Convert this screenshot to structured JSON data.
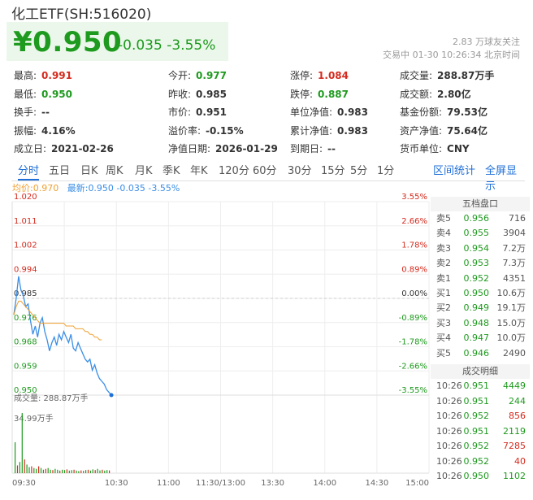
{
  "header": {
    "title": "化工ETF(SH:516020)",
    "price": "¥0.950",
    "change": "-0.035",
    "change_pct": "-3.55%",
    "follow": "2.83 万球友关注",
    "trade_status": "交易中 01-30 10:26:34 北京时间"
  },
  "info": {
    "rows": [
      [
        {
          "k": "最高:",
          "v": "0.991",
          "c": "red"
        },
        {
          "k": "今开:",
          "v": "0.977",
          "c": "green"
        },
        {
          "k": "涨停:",
          "v": "1.084",
          "c": "red"
        },
        {
          "k": "成交量:",
          "v": "288.87万手",
          "c": ""
        }
      ],
      [
        {
          "k": "最低:",
          "v": "0.950",
          "c": "green"
        },
        {
          "k": "昨收:",
          "v": "0.985",
          "c": ""
        },
        {
          "k": "跌停:",
          "v": "0.887",
          "c": "green"
        },
        {
          "k": "成交额:",
          "v": "2.80亿",
          "c": ""
        }
      ],
      [
        {
          "k": "换手:",
          "v": "--",
          "c": ""
        },
        {
          "k": "市价:",
          "v": "0.951",
          "c": ""
        },
        {
          "k": "单位净值:",
          "v": "0.983",
          "c": ""
        },
        {
          "k": "基金份额:",
          "v": "79.53亿",
          "c": ""
        }
      ],
      [
        {
          "k": "振幅:",
          "v": "4.16%",
          "c": ""
        },
        {
          "k": "溢价率:",
          "v": "-0.15%",
          "c": ""
        },
        {
          "k": "累计净值:",
          "v": "0.983",
          "c": ""
        },
        {
          "k": "资产净值:",
          "v": "75.64亿",
          "c": ""
        }
      ],
      [
        {
          "k": "成立日:",
          "v": "2021-02-26",
          "c": ""
        },
        {
          "k": "净值日期:",
          "v": "2026-01-29",
          "c": ""
        },
        {
          "k": "到期日:",
          "v": "--",
          "c": ""
        },
        {
          "k": "货币单位:",
          "v": "CNY",
          "c": ""
        }
      ]
    ]
  },
  "tabs": {
    "items": [
      "分时",
      "五日",
      "日K",
      "周K",
      "月K",
      "季K",
      "年K",
      "120分",
      "60分",
      "30分",
      "15分",
      "5分",
      "1分"
    ],
    "active": 0,
    "right": [
      "区间统计",
      "全屏显示"
    ]
  },
  "legend": {
    "avg_label": "均价:",
    "avg_value": "0.970",
    "latest_label": "最新:",
    "latest_value": "0.950",
    "latest_change": "-0.035",
    "latest_pct": "-3.55%"
  },
  "chart_data": {
    "type": "line",
    "y_ticks": [
      "1.020",
      "1.011",
      "1.002",
      "0.994",
      "0.985",
      "0.976",
      "0.968",
      "0.959",
      "0.950"
    ],
    "pct_ticks": [
      "3.55%",
      "2.66%",
      "1.78%",
      "0.89%",
      "0.00%",
      "-0.89%",
      "-1.78%",
      "-2.66%",
      "-3.55%"
    ],
    "x_ticks": [
      "09:30",
      "10:30",
      "11:00",
      "11:30/13:00",
      "13:30",
      "14:00",
      "14:30",
      "15:00"
    ],
    "ylim": [
      0.95,
      1.02
    ],
    "prev_close": 0.985,
    "series": [
      {
        "name": "最新",
        "color": "#3a8ee6",
        "values": [
          0.979,
          0.985,
          0.993,
          0.988,
          0.986,
          0.982,
          0.983,
          0.977,
          0.972,
          0.975,
          0.971,
          0.976,
          0.978,
          0.973,
          0.97,
          0.966,
          0.969,
          0.971,
          0.968,
          0.972,
          0.97,
          0.973,
          0.971,
          0.969,
          0.972,
          0.967,
          0.966,
          0.969,
          0.967,
          0.965,
          0.963,
          0.962,
          0.963,
          0.959,
          0.961,
          0.958,
          0.956,
          0.955,
          0.954,
          0.952,
          0.951,
          0.95
        ]
      },
      {
        "name": "均价",
        "color": "#f0a030",
        "values": [
          0.979,
          0.982,
          0.984,
          0.984,
          0.983,
          0.982,
          0.981,
          0.98,
          0.979,
          0.978,
          0.977,
          0.976,
          0.976,
          0.976,
          0.976,
          0.976,
          0.976,
          0.976,
          0.976,
          0.976,
          0.976,
          0.976,
          0.975,
          0.975,
          0.975,
          0.975,
          0.974,
          0.974,
          0.974,
          0.974,
          0.973,
          0.973,
          0.972,
          0.972,
          0.971,
          0.971,
          0.97,
          0.97
        ]
      }
    ],
    "volume": {
      "label": "成交量: 288.87万手",
      "max_label": "34.99万手",
      "max": 34.99,
      "values": [
        18,
        4.5,
        6.5,
        34.99,
        8,
        5,
        3.5,
        4,
        3,
        2.5,
        4,
        3,
        2,
        2.5,
        3,
        2,
        1.8,
        2.5,
        2,
        1.5,
        2,
        1.8,
        2.2,
        1.5,
        1.8,
        2,
        1.5,
        1.2,
        1.6,
        1.4,
        1.8,
        2,
        1.5,
        2.2,
        1.8,
        2.5,
        1.6,
        2,
        1.5,
        1.8,
        1.6
      ]
    }
  },
  "order_book": {
    "title": "五档盘口",
    "rows": [
      {
        "label": "卖5",
        "price": "0.956",
        "vol": "716",
        "c": "green"
      },
      {
        "label": "卖4",
        "price": "0.955",
        "vol": "3904",
        "c": "green"
      },
      {
        "label": "卖3",
        "price": "0.954",
        "vol": "7.2万",
        "c": "green"
      },
      {
        "label": "卖2",
        "price": "0.953",
        "vol": "7.3万",
        "c": "green"
      },
      {
        "label": "卖1",
        "price": "0.952",
        "vol": "4351",
        "c": "green"
      },
      {
        "label": "买1",
        "price": "0.950",
        "vol": "10.6万",
        "c": "green"
      },
      {
        "label": "买2",
        "price": "0.949",
        "vol": "19.1万",
        "c": "green"
      },
      {
        "label": "买3",
        "price": "0.948",
        "vol": "15.0万",
        "c": "green"
      },
      {
        "label": "买4",
        "price": "0.947",
        "vol": "10.0万",
        "c": "green"
      },
      {
        "label": "买5",
        "price": "0.946",
        "vol": "2490",
        "c": "green"
      }
    ]
  },
  "trades": {
    "title": "成交明细",
    "rows": [
      {
        "time": "10:26",
        "price": "0.951",
        "vol": "4449",
        "vc": "green"
      },
      {
        "time": "10:26",
        "price": "0.951",
        "vol": "244",
        "vc": "green"
      },
      {
        "time": "10:26",
        "price": "0.952",
        "vol": "856",
        "vc": "red"
      },
      {
        "time": "10:26",
        "price": "0.951",
        "vol": "2119",
        "vc": "green"
      },
      {
        "time": "10:26",
        "price": "0.952",
        "vol": "7285",
        "vc": "red"
      },
      {
        "time": "10:26",
        "price": "0.952",
        "vol": "40",
        "vc": "red"
      },
      {
        "time": "10:26",
        "price": "0.950",
        "vol": "1102",
        "vc": "green"
      }
    ]
  }
}
